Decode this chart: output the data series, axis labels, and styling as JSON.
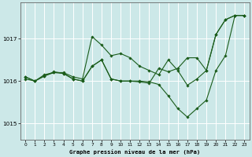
{
  "bg_color": "#cce8e8",
  "grid_color": "#ffffff",
  "line_color": "#1a5c1a",
  "xlabel": "Graphe pression niveau de la mer (hPa)",
  "yticks": [
    1015,
    1016,
    1017
  ],
  "xticks": [
    0,
    1,
    2,
    3,
    4,
    5,
    6,
    7,
    8,
    9,
    10,
    11,
    12,
    13,
    14,
    15,
    16,
    17,
    18,
    19,
    20,
    21,
    22,
    23
  ],
  "ylim": [
    1014.62,
    1017.85
  ],
  "xlim": [
    -0.5,
    23.5
  ],
  "lines": [
    {
      "x": [
        0,
        1,
        2,
        3,
        4,
        5,
        6,
        7,
        8,
        9,
        10,
        11,
        12,
        13,
        14,
        15,
        16,
        17,
        18,
        19,
        20,
        21,
        22,
        23
      ],
      "y": [
        1016.05,
        1016.0,
        1016.15,
        1016.2,
        1016.2,
        1016.1,
        1016.05,
        1017.05,
        1016.85,
        1016.6,
        1016.65,
        1016.55,
        1016.35,
        1016.25,
        1016.15,
        1016.5,
        1016.25,
        1015.9,
        1016.05,
        1016.25,
        1017.1,
        1017.45,
        1017.55,
        1017.55
      ]
    },
    {
      "x": [
        0,
        1,
        2,
        3,
        4,
        5,
        6,
        7,
        8,
        9,
        10,
        11,
        12,
        13,
        14,
        15,
        16,
        17,
        18,
        19,
        20,
        21,
        22,
        23
      ],
      "y": [
        1016.1,
        1016.0,
        1016.12,
        1016.2,
        1016.18,
        1016.05,
        1016.0,
        1016.35,
        1016.5,
        1016.05,
        1016.0,
        1016.0,
        1016.0,
        1015.98,
        1015.92,
        1015.65,
        1015.35,
        1015.15,
        1015.35,
        1015.55,
        1016.25,
        1016.6,
        1017.55,
        1017.55
      ]
    },
    {
      "x": [
        0,
        1,
        2,
        3,
        4,
        5,
        6,
        7,
        8,
        9,
        10,
        11,
        12,
        13,
        14,
        15,
        16,
        17,
        18,
        19,
        20,
        21,
        22,
        23
      ],
      "y": [
        1016.1,
        1016.0,
        1016.12,
        1016.22,
        1016.18,
        1016.05,
        1016.0,
        1016.35,
        1016.5,
        1016.05,
        1016.0,
        1016.0,
        1015.98,
        1015.95,
        1016.3,
        1016.22,
        1016.3,
        1016.55,
        1016.55,
        1016.25,
        1017.1,
        1017.45,
        1017.55,
        1017.55
      ]
    }
  ]
}
